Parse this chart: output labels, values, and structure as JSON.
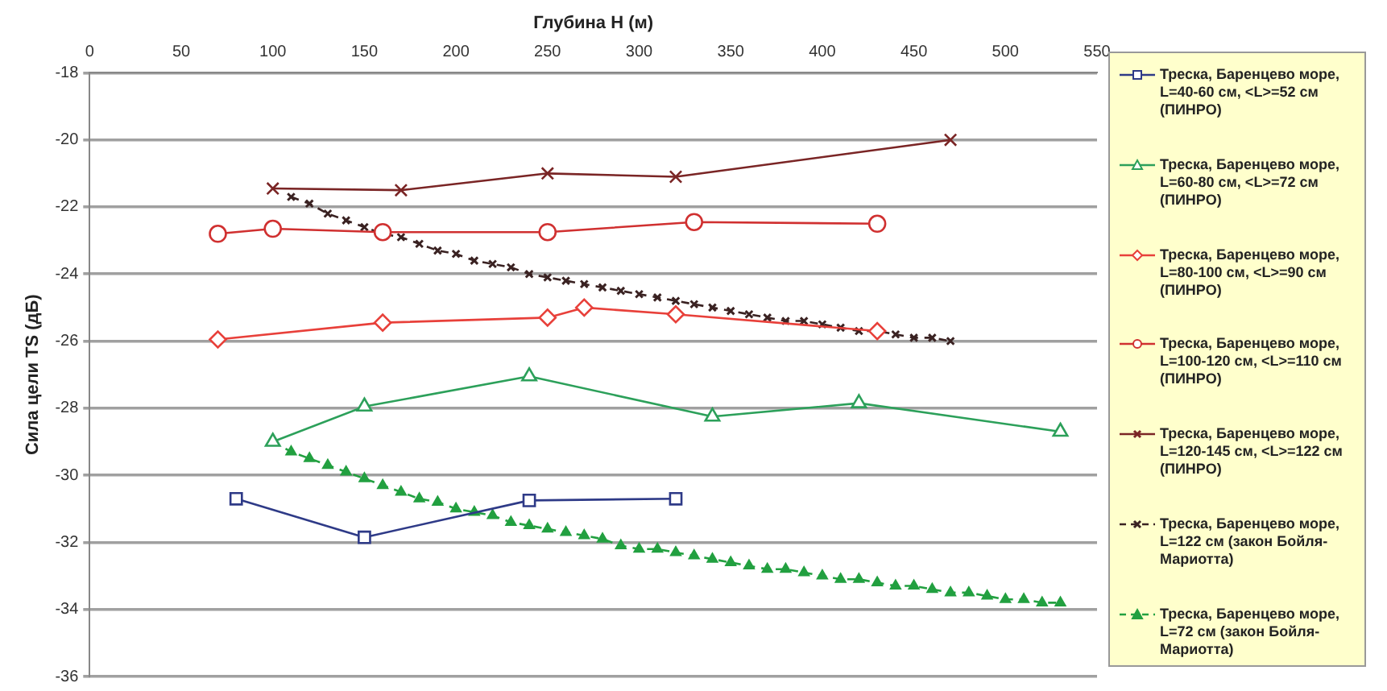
{
  "chart_data": {
    "type": "line",
    "xlabel": "Глубина H (м)",
    "ylabel": "Сила цели TS (дБ)",
    "xlim": [
      0,
      550
    ],
    "xticks": [
      0,
      50,
      100,
      150,
      200,
      250,
      300,
      350,
      400,
      450,
      500,
      550
    ],
    "ylim": [
      -36,
      -18
    ],
    "yticks": [
      -36,
      -34,
      -32,
      -30,
      -28,
      -26,
      -24,
      -22,
      -20,
      -18
    ],
    "grid": "y",
    "legend": "right",
    "series": [
      {
        "name": "Треска, Баренцево море, L=40-60 см, <L>=52 см (ПИНРО)",
        "color": "#2e3a87",
        "marker": "square",
        "line_style": "solid",
        "x": [
          80,
          150,
          240,
          320
        ],
        "values": [
          -30.7,
          -31.85,
          -30.75,
          -30.7
        ]
      },
      {
        "name": "Треска, Баренцево море, L=60-80 см, <L>=72 см (ПИНРО)",
        "color": "#2ca05a",
        "marker": "triangle",
        "line_style": "solid",
        "x": [
          100,
          150,
          240,
          340,
          420,
          530
        ],
        "values": [
          -29.0,
          -27.95,
          -27.05,
          -28.25,
          -27.85,
          -28.7
        ]
      },
      {
        "name": "Треска, Баренцево море, L=80-100 см, <L>=90 см (ПИНРО)",
        "color": "#e8403a",
        "marker": "diamond",
        "line_style": "solid",
        "x": [
          70,
          160,
          250,
          270,
          320,
          430
        ],
        "values": [
          -25.95,
          -25.45,
          -25.3,
          -25.0,
          -25.2,
          -25.7
        ]
      },
      {
        "name": "Треска, Баренцево море, L=100-120 см, <L>=110 см (ПИНРО)",
        "color": "#d03030",
        "marker": "circle",
        "line_style": "solid",
        "x": [
          70,
          100,
          160,
          250,
          330,
          430
        ],
        "values": [
          -22.8,
          -22.65,
          -22.75,
          -22.75,
          -22.45,
          -22.5
        ]
      },
      {
        "name": "Треска, Баренцево море, L=120-145 см, <L>=122 см (ПИНРО)",
        "color": "#7a2525",
        "marker": "cross",
        "line_style": "solid",
        "x": [
          100,
          170,
          250,
          320,
          470
        ],
        "values": [
          -21.45,
          -21.5,
          -21.0,
          -21.1,
          -20.0
        ]
      },
      {
        "name": "Треска, Баренцево море, L=122 см (закон Бойля-Мариотта)",
        "color": "#3a2222",
        "marker": "cross",
        "line_style": "dashed",
        "x": [
          110,
          120,
          130,
          140,
          150,
          160,
          170,
          180,
          190,
          200,
          210,
          220,
          230,
          240,
          250,
          260,
          270,
          280,
          290,
          300,
          310,
          320,
          330,
          340,
          350,
          360,
          370,
          380,
          390,
          400,
          410,
          420,
          430,
          440,
          450,
          460,
          470
        ],
        "values": [
          -21.7,
          -21.9,
          -22.2,
          -22.4,
          -22.6,
          -22.8,
          -22.9,
          -23.1,
          -23.3,
          -23.4,
          -23.6,
          -23.7,
          -23.8,
          -24.0,
          -24.1,
          -24.2,
          -24.3,
          -24.4,
          -24.5,
          -24.6,
          -24.7,
          -24.8,
          -24.9,
          -25.0,
          -25.1,
          -25.2,
          -25.3,
          -25.4,
          -25.4,
          -25.5,
          -25.6,
          -25.7,
          -25.7,
          -25.8,
          -25.9,
          -25.9,
          -26.0
        ]
      },
      {
        "name": "Треска, Баренцево море, L=72 см (закон Бойля-Мариотта)",
        "color": "#22a040",
        "marker": "triangle",
        "line_style": "dashed",
        "x": [
          100,
          110,
          120,
          130,
          140,
          150,
          160,
          170,
          180,
          190,
          200,
          210,
          220,
          230,
          240,
          250,
          260,
          270,
          280,
          290,
          300,
          310,
          320,
          330,
          340,
          350,
          360,
          370,
          380,
          390,
          400,
          410,
          420,
          430,
          440,
          450,
          460,
          470,
          480,
          490,
          500,
          510,
          520,
          530
        ],
        "values": [
          -29.0,
          -29.3,
          -29.5,
          -29.7,
          -29.9,
          -30.1,
          -30.3,
          -30.5,
          -30.7,
          -30.8,
          -31.0,
          -31.1,
          -31.2,
          -31.4,
          -31.5,
          -31.6,
          -31.7,
          -31.8,
          -31.9,
          -32.1,
          -32.2,
          -32.2,
          -32.3,
          -32.4,
          -32.5,
          -32.6,
          -32.7,
          -32.8,
          -32.8,
          -32.9,
          -33.0,
          -33.1,
          -33.1,
          -33.2,
          -33.3,
          -33.3,
          -33.4,
          -33.5,
          -33.5,
          -33.6,
          -33.7,
          -33.7,
          -33.8,
          -33.8
        ]
      }
    ]
  }
}
